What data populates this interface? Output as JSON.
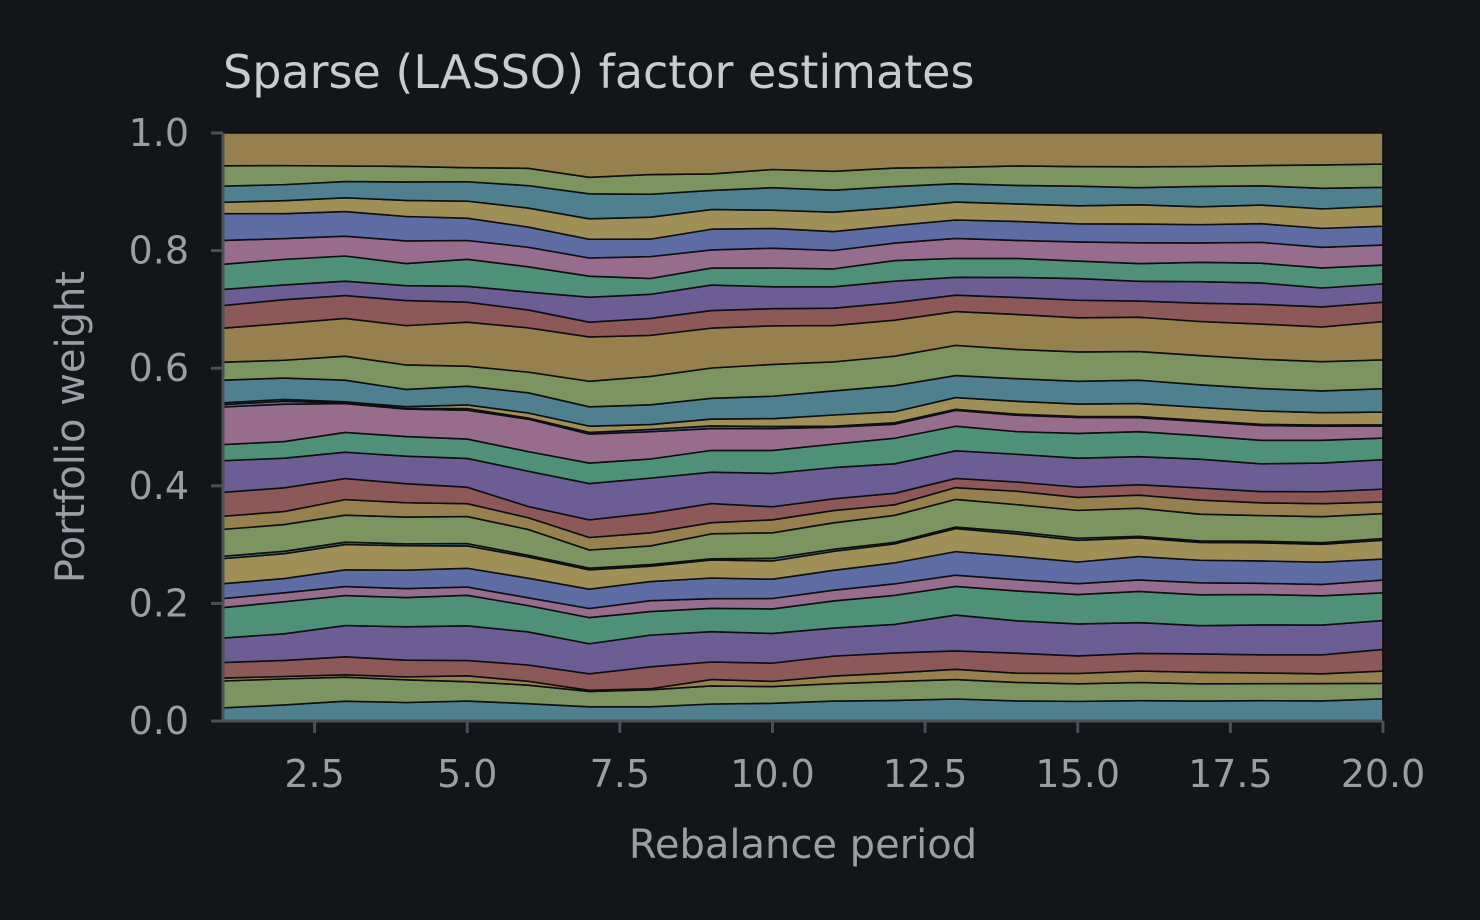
{
  "chart_data": {
    "type": "area",
    "stacked": true,
    "normalized": true,
    "title": "Sparse (LASSO) factor estimates",
    "xlabel": "Rebalance period",
    "ylabel": "Portfolio weight",
    "xlim": [
      1,
      20
    ],
    "ylim": [
      0,
      1
    ],
    "x_ticks": [
      "2.5",
      "5.0",
      "7.5",
      "10.0",
      "12.5",
      "15.0",
      "17.5",
      "20.0"
    ],
    "y_ticks": [
      "0.0",
      "0.2",
      "0.4",
      "0.6",
      "0.8",
      "1.0"
    ],
    "grid": false,
    "legend": "none",
    "x": [
      1,
      2,
      3,
      4,
      5,
      6,
      7,
      8,
      9,
      10,
      11,
      12,
      13,
      14,
      15,
      16,
      17,
      18,
      19,
      20
    ],
    "palette": [
      "#4e8090",
      "#7c9460",
      "#96804e",
      "#8c5858",
      "#6c5e94",
      "#4e9078",
      "#986c8c",
      "#5e6ca4",
      "#a09058"
    ],
    "series": [
      {
        "values": [
          0.022,
          0.027,
          0.033,
          0.031,
          0.034,
          0.031,
          0.025,
          0.026,
          0.032,
          0.034,
          0.039,
          0.041,
          0.043,
          0.039,
          0.038,
          0.039,
          0.038,
          0.038,
          0.037,
          0.04
        ]
      },
      {
        "values": [
          0.045,
          0.044,
          0.04,
          0.038,
          0.033,
          0.033,
          0.027,
          0.031,
          0.034,
          0.032,
          0.034,
          0.038,
          0.038,
          0.036,
          0.034,
          0.035,
          0.033,
          0.032,
          0.032,
          0.028
        ]
      },
      {
        "values": [
          0.005,
          0.004,
          0.004,
          0.005,
          0.01,
          0.007,
          0.002,
          0.002,
          0.012,
          0.01,
          0.015,
          0.017,
          0.02,
          0.018,
          0.02,
          0.022,
          0.022,
          0.02,
          0.018,
          0.022
        ]
      },
      {
        "values": [
          0.026,
          0.027,
          0.03,
          0.028,
          0.026,
          0.029,
          0.029,
          0.04,
          0.033,
          0.035,
          0.039,
          0.04,
          0.036,
          0.039,
          0.034,
          0.034,
          0.035,
          0.034,
          0.035,
          0.039
        ]
      },
      {
        "values": [
          0.041,
          0.045,
          0.052,
          0.056,
          0.059,
          0.059,
          0.053,
          0.058,
          0.057,
          0.057,
          0.055,
          0.057,
          0.07,
          0.063,
          0.062,
          0.059,
          0.054,
          0.056,
          0.055,
          0.052
        ]
      },
      {
        "values": [
          0.051,
          0.054,
          0.05,
          0.049,
          0.052,
          0.047,
          0.046,
          0.043,
          0.044,
          0.047,
          0.053,
          0.058,
          0.056,
          0.058,
          0.057,
          0.06,
          0.059,
          0.057,
          0.054,
          0.05
        ]
      },
      {
        "values": [
          0.015,
          0.015,
          0.015,
          0.015,
          0.014,
          0.014,
          0.016,
          0.02,
          0.018,
          0.02,
          0.021,
          0.023,
          0.022,
          0.022,
          0.021,
          0.022,
          0.023,
          0.021,
          0.021,
          0.023
        ]
      },
      {
        "values": [
          0.025,
          0.024,
          0.028,
          0.031,
          0.032,
          0.035,
          0.034,
          0.035,
          0.039,
          0.037,
          0.039,
          0.042,
          0.046,
          0.045,
          0.042,
          0.045,
          0.043,
          0.042,
          0.041,
          0.038
        ]
      },
      {
        "values": [
          0.042,
          0.042,
          0.042,
          0.041,
          0.038,
          0.038,
          0.034,
          0.028,
          0.034,
          0.035,
          0.037,
          0.038,
          0.045,
          0.044,
          0.042,
          0.036,
          0.034,
          0.034,
          0.033,
          0.034
        ]
      },
      {
        "values": [
          0.004,
          0.004,
          0.004,
          0.003,
          0.004,
          0.003,
          0.003,
          0.003,
          0.002,
          0.005,
          0.004,
          0.003,
          0.003,
          0.004,
          0.004,
          0.003,
          0.003,
          0.003,
          0.003,
          0.003
        ]
      },
      {
        "values": [
          0.045,
          0.045,
          0.045,
          0.045,
          0.046,
          0.046,
          0.032,
          0.034,
          0.047,
          0.049,
          0.052,
          0.054,
          0.054,
          0.053,
          0.054,
          0.054,
          0.051,
          0.048,
          0.048,
          0.045
        ]
      },
      {
        "values": [
          0.022,
          0.022,
          0.026,
          0.024,
          0.022,
          0.021,
          0.022,
          0.024,
          0.021,
          0.025,
          0.024,
          0.021,
          0.023,
          0.026,
          0.025,
          0.025,
          0.027,
          0.024,
          0.024,
          0.021
        ]
      },
      {
        "values": [
          0.04,
          0.04,
          0.035,
          0.032,
          0.028,
          0.02,
          0.031,
          0.036,
          0.036,
          0.025,
          0.023,
          0.023,
          0.018,
          0.018,
          0.02,
          0.02,
          0.023,
          0.021,
          0.022,
          0.023
        ]
      },
      {
        "values": [
          0.053,
          0.05,
          0.044,
          0.046,
          0.049,
          0.063,
          0.064,
          0.064,
          0.059,
          0.064,
          0.061,
          0.059,
          0.054,
          0.054,
          0.056,
          0.054,
          0.055,
          0.052,
          0.053,
          0.053
        ]
      },
      {
        "values": [
          0.027,
          0.028,
          0.033,
          0.033,
          0.033,
          0.035,
          0.036,
          0.035,
          0.041,
          0.044,
          0.046,
          0.051,
          0.048,
          0.044,
          0.048,
          0.048,
          0.045,
          0.044,
          0.042,
          0.039
        ]
      },
      {
        "values": [
          0.063,
          0.063,
          0.048,
          0.046,
          0.049,
          0.058,
          0.051,
          0.05,
          0.041,
          0.042,
          0.033,
          0.028,
          0.031,
          0.032,
          0.031,
          0.027,
          0.027,
          0.028,
          0.026,
          0.022
        ]
      },
      {
        "values": [
          0.004,
          0.005,
          0.001,
          0.001,
          0.003,
          0.002,
          0.003,
          0.004,
          0.005,
          0.004,
          0.002,
          0.003,
          0.002,
          0.002,
          0.002,
          0.002,
          0.002,
          0.002,
          0.002,
          0.002
        ]
      },
      {
        "values": [
          0.003,
          0.003,
          0.002,
          0.003,
          0.006,
          0.009,
          0.011,
          0.009,
          0.013,
          0.015,
          0.022,
          0.022,
          0.023,
          0.025,
          0.024,
          0.025,
          0.025,
          0.025,
          0.023,
          0.023
        ]
      },
      {
        "values": [
          0.038,
          0.036,
          0.036,
          0.029,
          0.032,
          0.036,
          0.034,
          0.036,
          0.039,
          0.043,
          0.047,
          0.052,
          0.043,
          0.044,
          0.044,
          0.045,
          0.043,
          0.042,
          0.04,
          0.042
        ]
      },
      {
        "values": [
          0.03,
          0.03,
          0.04,
          0.041,
          0.034,
          0.037,
          0.045,
          0.052,
          0.057,
          0.061,
          0.057,
          0.059,
          0.059,
          0.057,
          0.057,
          0.055,
          0.056,
          0.055,
          0.054,
          0.052
        ]
      },
      {
        "values": [
          0.057,
          0.062,
          0.063,
          0.066,
          0.075,
          0.079,
          0.078,
          0.075,
          0.075,
          0.074,
          0.071,
          0.072,
          0.066,
          0.068,
          0.066,
          0.066,
          0.065,
          0.066,
          0.064,
          0.069
        ]
      },
      {
        "values": [
          0.038,
          0.04,
          0.038,
          0.042,
          0.034,
          0.032,
          0.026,
          0.031,
          0.033,
          0.033,
          0.034,
          0.035,
          0.032,
          0.033,
          0.034,
          0.031,
          0.035,
          0.037,
          0.037,
          0.035
        ]
      },
      {
        "values": [
          0.027,
          0.025,
          0.024,
          0.025,
          0.027,
          0.032,
          0.044,
          0.044,
          0.048,
          0.042,
          0.042,
          0.043,
          0.035,
          0.039,
          0.042,
          0.038,
          0.041,
          0.04,
          0.035,
          0.033
        ]
      },
      {
        "values": [
          0.042,
          0.043,
          0.042,
          0.037,
          0.046,
          0.045,
          0.037,
          0.029,
          0.032,
          0.036,
          0.035,
          0.041,
          0.037,
          0.037,
          0.034,
          0.034,
          0.037,
          0.037,
          0.037,
          0.034
        ]
      },
      {
        "values": [
          0.04,
          0.035,
          0.033,
          0.038,
          0.032,
          0.035,
          0.032,
          0.04,
          0.034,
          0.038,
          0.036,
          0.035,
          0.039,
          0.035,
          0.037,
          0.04,
          0.037,
          0.039,
          0.038,
          0.036
        ]
      },
      {
        "values": [
          0.045,
          0.042,
          0.041,
          0.041,
          0.038,
          0.036,
          0.033,
          0.032,
          0.039,
          0.038,
          0.037,
          0.035,
          0.036,
          0.037,
          0.035,
          0.036,
          0.035,
          0.035,
          0.035,
          0.034
        ]
      },
      {
        "values": [
          0.019,
          0.022,
          0.023,
          0.027,
          0.029,
          0.034,
          0.036,
          0.04,
          0.037,
          0.035,
          0.038,
          0.036,
          0.035,
          0.034,
          0.035,
          0.037,
          0.034,
          0.035,
          0.036,
          0.036
        ]
      },
      {
        "values": [
          0.027,
          0.027,
          0.027,
          0.031,
          0.033,
          0.04,
          0.044,
          0.042,
          0.036,
          0.043,
          0.043,
          0.042,
          0.036,
          0.036,
          0.038,
          0.033,
          0.039,
          0.036,
          0.038,
          0.034
        ]
      },
      {
        "values": [
          0.034,
          0.032,
          0.026,
          0.026,
          0.024,
          0.031,
          0.029,
          0.036,
          0.031,
          0.035,
          0.037,
          0.037,
          0.032,
          0.038,
          0.038,
          0.04,
          0.038,
          0.038,
          0.043,
          0.042
        ]
      },
      {
        "values": [
          0.055,
          0.055,
          0.055,
          0.056,
          0.059,
          0.063,
          0.078,
          0.076,
          0.077,
          0.07,
          0.075,
          0.07,
          0.067,
          0.064,
          0.065,
          0.065,
          0.064,
          0.061,
          0.059,
          0.056
        ]
      }
    ]
  }
}
